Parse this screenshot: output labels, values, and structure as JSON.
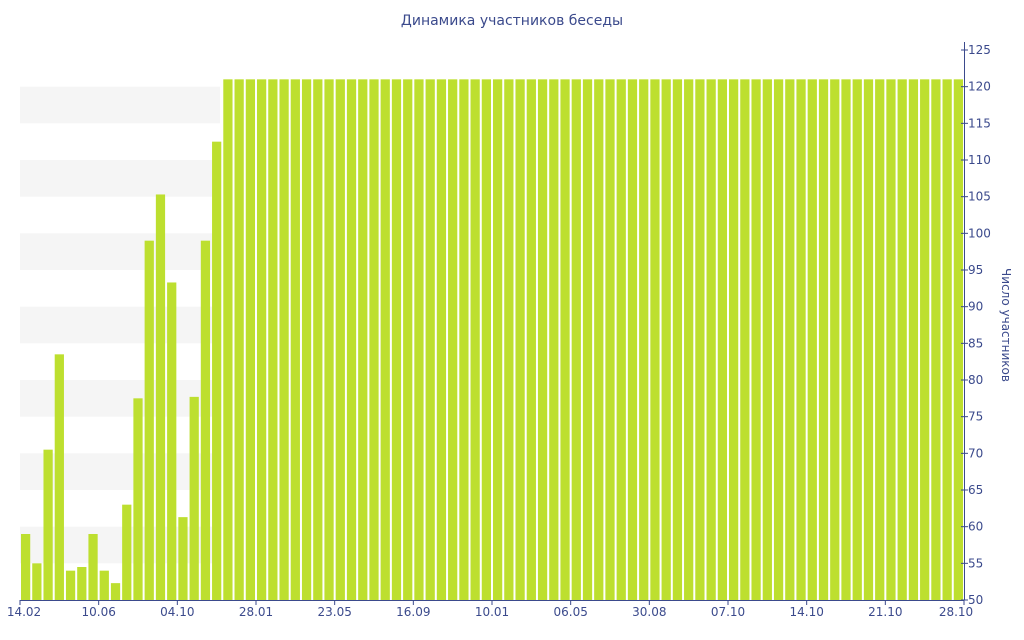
{
  "chart_data": {
    "type": "bar",
    "title": "Динамика участников беседы",
    "ylabel": "Число участников",
    "ylim": [
      50,
      125
    ],
    "yticks": [
      50,
      55,
      60,
      65,
      70,
      75,
      80,
      85,
      90,
      95,
      100,
      105,
      110,
      115,
      120,
      125
    ],
    "y_axis_side": "right",
    "grid": "alternating horizontal bands",
    "bar_color": "#bddf2f",
    "xtick_labels": [
      "14.02",
      "10.06",
      "04.10",
      "28.01",
      "23.05",
      "16.09",
      "10.01",
      "06.05",
      "30.08",
      "07.10",
      "14.10",
      "21.10",
      "28.10"
    ],
    "values": [
      59,
      55,
      70.5,
      83.5,
      54,
      54.5,
      59,
      54,
      52.3,
      63,
      77.5,
      99,
      105.3,
      93.3,
      61.3,
      77.7,
      99,
      112.5,
      121,
      121,
      121,
      121,
      121,
      121,
      121,
      121,
      121,
      121,
      121,
      121,
      121,
      121,
      121,
      121,
      121,
      121,
      121,
      121,
      121,
      121,
      121,
      121,
      121,
      121,
      121,
      121,
      121,
      121,
      121,
      121,
      121,
      121,
      121,
      121,
      121,
      121,
      121,
      121,
      121,
      121,
      121,
      121,
      121,
      121,
      121,
      121,
      121,
      121,
      121,
      121,
      121,
      121,
      121,
      121,
      121,
      121,
      121,
      121,
      121,
      121,
      121,
      121,
      121,
      121
    ]
  }
}
